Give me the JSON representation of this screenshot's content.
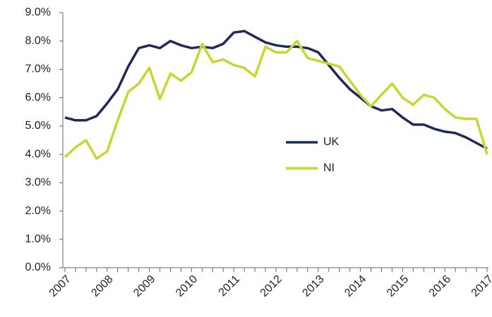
{
  "chart_data": {
    "type": "line",
    "categories": [
      "2007",
      null,
      null,
      null,
      "2008",
      null,
      null,
      null,
      "2009",
      null,
      null,
      null,
      "2010",
      null,
      null,
      null,
      "2011",
      null,
      null,
      null,
      "2012",
      null,
      null,
      null,
      "2013",
      null,
      null,
      null,
      "2014",
      null,
      null,
      null,
      "2015",
      null,
      null,
      null,
      "2016",
      null,
      null,
      null,
      "2017"
    ],
    "series": [
      {
        "name": "UK",
        "color": "#1f2a5c",
        "values": [
          5.3,
          5.2,
          5.2,
          5.35,
          5.8,
          6.3,
          7.1,
          7.75,
          7.85,
          7.75,
          8.0,
          7.85,
          7.75,
          7.8,
          7.75,
          7.9,
          8.3,
          8.35,
          8.15,
          7.95,
          7.85,
          7.8,
          7.8,
          7.75,
          7.6,
          7.15,
          6.7,
          6.3,
          6.0,
          5.7,
          5.55,
          5.6,
          5.3,
          5.05,
          5.05,
          4.9,
          4.8,
          4.75,
          4.6,
          4.4,
          4.2
        ]
      },
      {
        "name": "NI",
        "color": "#c8d630",
        "values": [
          3.9,
          4.25,
          4.5,
          3.85,
          4.1,
          5.2,
          6.2,
          6.5,
          7.05,
          5.95,
          6.85,
          6.6,
          6.9,
          7.9,
          7.25,
          7.35,
          7.15,
          7.05,
          6.75,
          7.8,
          7.6,
          7.6,
          8.0,
          7.4,
          7.3,
          7.2,
          7.1,
          6.6,
          6.1,
          5.7,
          6.1,
          6.5,
          6.0,
          5.75,
          6.1,
          6.0,
          5.6,
          5.3,
          5.25,
          5.25,
          4.0
        ]
      }
    ],
    "ylim": [
      0,
      9
    ],
    "yticks": [
      {
        "value": 0,
        "label": "0.0%"
      },
      {
        "value": 1,
        "label": "1.0%"
      },
      {
        "value": 2,
        "label": "2.0%"
      },
      {
        "value": 3,
        "label": "3.0%"
      },
      {
        "value": 4,
        "label": "4.0%"
      },
      {
        "value": 5,
        "label": "5.0%"
      },
      {
        "value": 6,
        "label": "6.0%"
      },
      {
        "value": 7,
        "label": "7.0%"
      },
      {
        "value": 8,
        "label": "8.0%"
      },
      {
        "value": 9,
        "label": "9.0%"
      }
    ],
    "grid": false,
    "legend": "center-right"
  }
}
